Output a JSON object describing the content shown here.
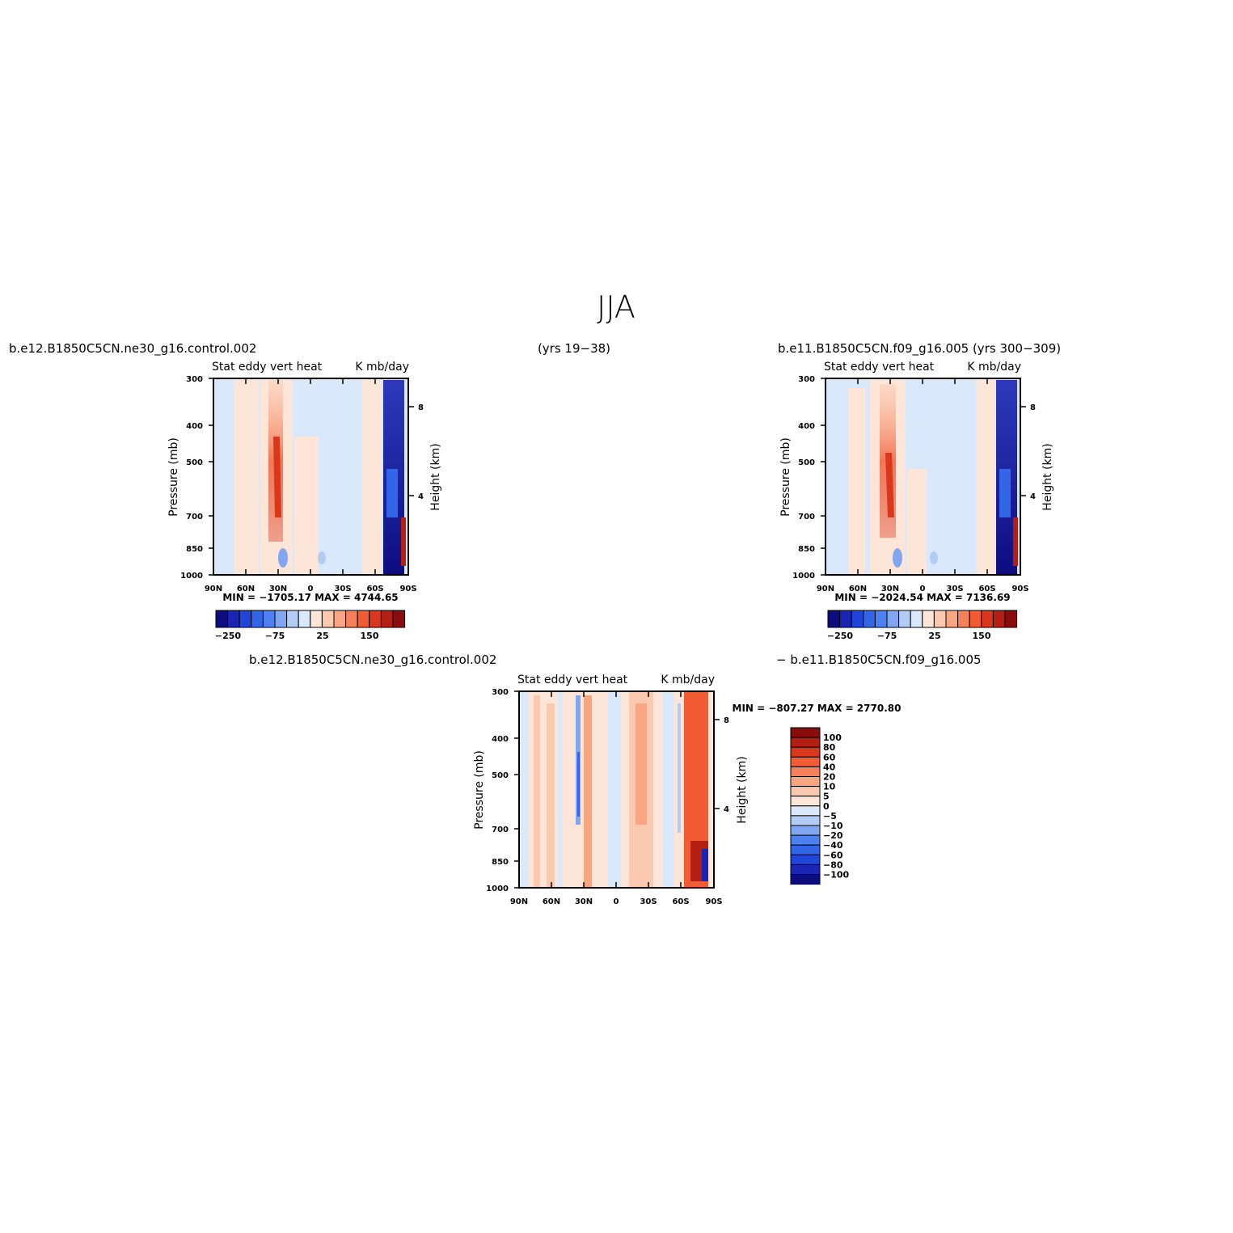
{
  "page": {
    "title": "JJA",
    "top_left_label": "b.e12.B1850C5CN.ne30_g16.control.002",
    "top_center_label": "(yrs 19−38)",
    "top_right_label": "b.e11.B1850C5CN.f09_g16.005 (yrs 300−309)",
    "bottom_left_label": "b.e12.B1850C5CN.ne30_g16.control.002",
    "bottom_right_label": "−  b.e11.B1850C5CN.f09_g16.005"
  },
  "colors": {
    "blues": [
      "#0d0d80",
      "#1a26b3",
      "#2046d9",
      "#3366e6",
      "#4d80f0",
      "#80a6f2",
      "#b3ccf5",
      "#d9e8fb"
    ],
    "reds": [
      "#fde6d7",
      "#fbc9b0",
      "#f8a582",
      "#f5815b",
      "#f25c35",
      "#d9381c",
      "#b31f12",
      "#8a0d0d"
    ]
  },
  "chart_data": [
    {
      "type": "heatmap",
      "title": "Stat eddy vert heat",
      "units": "K mb/day",
      "xlabel": "",
      "ylabel": "Pressure (mb)",
      "y2label": "Height (km)",
      "x_ticks": [
        "90N",
        "60N",
        "30N",
        "0",
        "30S",
        "60S",
        "90S"
      ],
      "x_range": [
        90,
        -90
      ],
      "y_ticks": [
        300,
        400,
        500,
        700,
        850,
        1000
      ],
      "y_range": [
        1000,
        300
      ],
      "y_scale": "log",
      "y2_ticks": [
        4,
        8
      ],
      "stats": "MIN = −1705.17   MAX = 4744.65",
      "colorbar_labels": [
        "−250",
        "−75",
        "25",
        "150"
      ],
      "colorbar_boxes": 16
    },
    {
      "type": "heatmap",
      "title": "Stat eddy vert heat",
      "units": "K mb/day",
      "xlabel": "",
      "ylabel": "Pressure (mb)",
      "y2label": "Height (km)",
      "x_ticks": [
        "90N",
        "60N",
        "30N",
        "0",
        "30S",
        "60S",
        "90S"
      ],
      "x_range": [
        90,
        -90
      ],
      "y_ticks": [
        300,
        400,
        500,
        700,
        850,
        1000
      ],
      "y_range": [
        1000,
        300
      ],
      "y_scale": "log",
      "y2_ticks": [
        4,
        8
      ],
      "stats": "MIN = −2024.54   MAX = 7136.69",
      "colorbar_labels": [
        "−250",
        "−75",
        "25",
        "150"
      ],
      "colorbar_boxes": 16
    },
    {
      "type": "heatmap",
      "title": "Stat eddy vert heat",
      "units": "K mb/day",
      "xlabel": "",
      "ylabel": "Pressure (mb)",
      "y2label": "Height (km)",
      "x_ticks": [
        "90N",
        "60N",
        "30N",
        "0",
        "30S",
        "60S",
        "90S"
      ],
      "x_range": [
        90,
        -90
      ],
      "y_ticks": [
        300,
        400,
        500,
        700,
        850,
        1000
      ],
      "y_range": [
        1000,
        300
      ],
      "y_scale": "log",
      "y2_ticks": [
        4,
        8
      ],
      "stats": "MIN = −807.27   MAX = 2770.80",
      "colorbar_labels": [
        "100",
        "80",
        "60",
        "40",
        "20",
        "10",
        "5",
        "0",
        "−5",
        "−10",
        "−20",
        "−40",
        "−60",
        "−80",
        "−100"
      ],
      "colorbar_boxes": 16
    }
  ]
}
